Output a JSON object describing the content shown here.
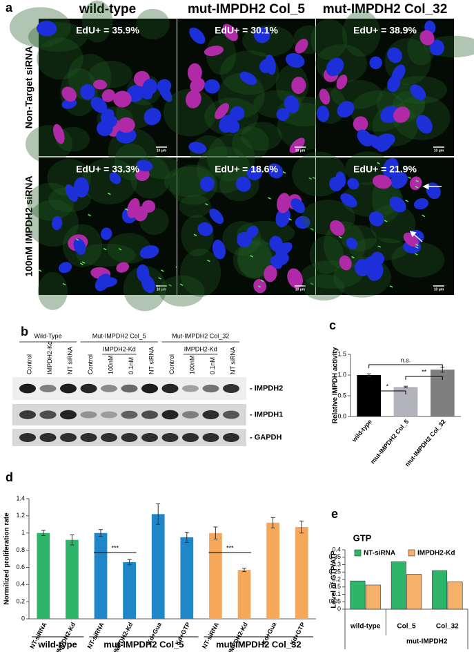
{
  "panel_a": {
    "label": "a",
    "columns": [
      "wild-type",
      "mut-IMPDH2 Col_5",
      "mut-IMPDH2 Col_32"
    ],
    "rows": [
      "Non-Target siRNA",
      "100nM IMPDH2 siRNA"
    ],
    "edu": [
      [
        "EdU+ = 35.9%",
        "EdU+ = 30.1%",
        "EdU+ = 38.9%"
      ],
      [
        "EdU+ = 33.3%",
        "EdU+ = 18.6%",
        "EdU+ = 21.9%"
      ]
    ],
    "scale_bar": "10 μm"
  },
  "panel_b": {
    "label": "b",
    "groups": [
      "Wild-Type",
      "Mut-IMPDH2 Col_5",
      "Mut-IMPDH2 Col_32"
    ],
    "subgroup": "IMPDH2-Kd",
    "lanes": [
      "Control",
      "IMPDH2-Kd",
      "NT siRNA",
      "Control",
      "100nM",
      "0.1nM",
      "NT siRNA",
      "Control",
      "100nM",
      "0.1nM",
      "NT siRNA"
    ],
    "bands": [
      "- IMPDH2",
      "- IMPDH1",
      "- GAPDH"
    ]
  },
  "chart_data": [
    {
      "type": "bar",
      "panel_label": "c",
      "ylabel": "Relative IMPDH activity",
      "categories": [
        "wild-type",
        "mut-IMPDH2 Col_5",
        "mut-IMPDH2 Col_32"
      ],
      "values": [
        1.0,
        0.71,
        1.13
      ],
      "errors": [
        0.03,
        0.02,
        0.06
      ],
      "colors": [
        "#000000",
        "#b3b3bb",
        "#7f7f7f"
      ],
      "ylim": [
        0,
        1.5
      ],
      "yticks": [
        {
          "value": 0,
          "label": "0.0"
        },
        {
          "value": 0.5,
          "label": "0.5"
        },
        {
          "value": 1,
          "label": "1.0"
        },
        {
          "value": 1.5,
          "label": "1.5"
        }
      ],
      "significance": [
        "*",
        "**",
        "n.s."
      ]
    },
    {
      "type": "bar",
      "panel_label": "d",
      "ylabel": "Normilized proliferation rate",
      "groups": [
        {
          "name": "wild-type",
          "color": "#2fb56a",
          "categories": [
            "NT-siRNA",
            "IMPDH2-Kd"
          ],
          "values": [
            1.0,
            0.92
          ],
          "errors": [
            0.03,
            0.06
          ]
        },
        {
          "name": "mut-IMPDH2 Col_5",
          "color": "#1f86c8",
          "categories": [
            "NT-siRNA",
            "IMPDH2-Kd",
            "Kd+Gua",
            "Kd+GTP"
          ],
          "values": [
            1.0,
            0.66,
            1.22,
            0.95
          ],
          "errors": [
            0.04,
            0.03,
            0.12,
            0.06
          ]
        },
        {
          "name": "mut-IMPDH2 Col_32",
          "color": "#f5a85a",
          "categories": [
            "NT-siRNA",
            "IMPDH2-Kd",
            "Kd+Gua",
            "Kd+GTP"
          ],
          "values": [
            1.0,
            0.57,
            1.12,
            1.07
          ],
          "errors": [
            0.07,
            0.02,
            0.06,
            0.07
          ]
        }
      ],
      "ylim": [
        0,
        1.4
      ],
      "yticks": [
        0,
        0.2,
        0.4,
        0.6,
        0.8,
        1,
        1.2,
        1.4
      ],
      "significance": [
        "***",
        "***"
      ]
    },
    {
      "type": "bar",
      "panel_label": "e",
      "title": "GTP",
      "ylabel": "Level of GTP/ATP",
      "categories": [
        "wild-type",
        "Col_5",
        "Col_32"
      ],
      "group_label": "mut-IMPDH2",
      "series": [
        {
          "name": "NT-siRNA",
          "color": "#2fb56a",
          "values": [
            0.19,
            0.32,
            0.26
          ]
        },
        {
          "name": "IMPDH2-Kd",
          "color": "#f5b06a",
          "values": [
            0.163,
            0.235,
            0.185
          ]
        }
      ],
      "ylim": [
        0,
        0.4
      ],
      "yticks": [
        0,
        0.05,
        0.1,
        0.15,
        0.2,
        0.25,
        0.3,
        0.35,
        0.4
      ],
      "legend": "top"
    }
  ]
}
